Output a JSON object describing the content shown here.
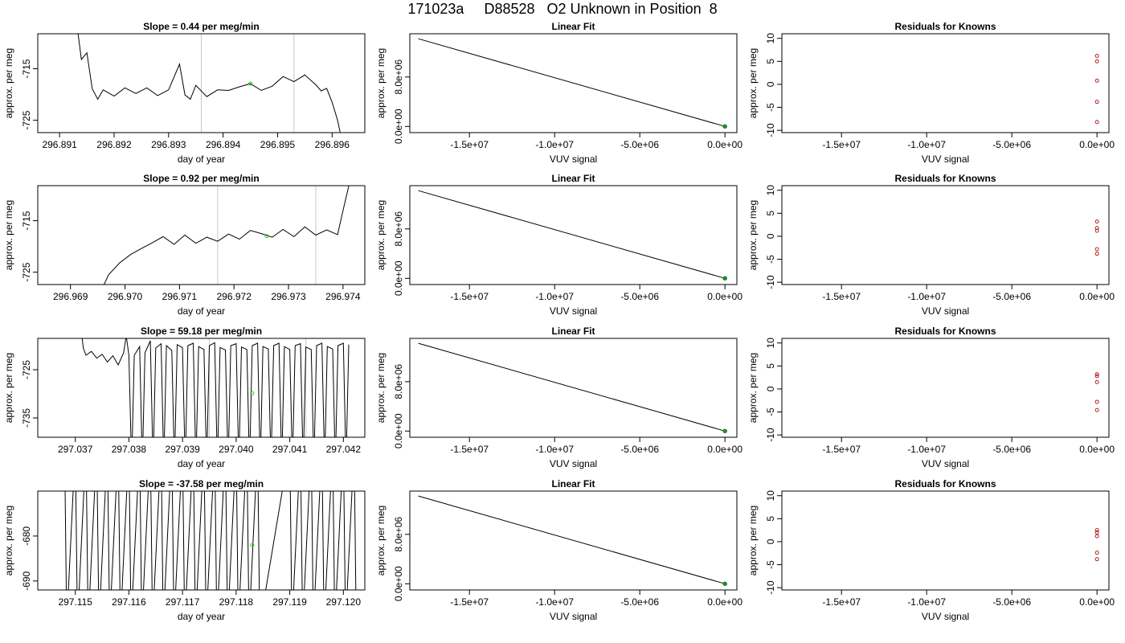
{
  "title": "171023a     D88528   O2 Unknown in Position  8",
  "chart_data": [
    {
      "type": "line",
      "title": "Slope =  0.44  per meg/min",
      "xlabel": "day of year",
      "ylabel": "approx. per meg",
      "xlim": [
        296.8906,
        296.8966
      ],
      "ylim": [
        -727.4,
        -708.2
      ],
      "x_ticks": [
        "296.891",
        "296.892",
        "296.893",
        "296.894",
        "296.895",
        "296.896"
      ],
      "x_tick_values": [
        296.891,
        296.892,
        296.893,
        296.894,
        296.895,
        296.896
      ],
      "y_ticks": [
        "-725",
        "-715"
      ],
      "y_tick_values": [
        -725,
        -715
      ],
      "vlines": [
        296.8936,
        296.8953
      ],
      "point": [
        296.8945,
        -717.9
      ],
      "series": [
        {
          "x": [
            296.8913,
            296.8914,
            296.8915,
            296.8916,
            296.8917,
            296.8918,
            296.892,
            296.8922,
            296.8924,
            296.8926,
            296.8928,
            296.893,
            296.8932,
            296.8933,
            296.8934,
            296.8935,
            296.8937,
            296.8939,
            296.8941,
            296.8943,
            296.8945,
            296.8947,
            296.8949,
            296.8951,
            296.8953,
            296.8955,
            296.8957,
            296.8958,
            296.8959,
            296.896,
            296.8961,
            296.8962
          ],
          "y": [
            -705.0,
            -713.2,
            -711.9,
            -718.9,
            -720.9,
            -719.1,
            -720.3,
            -718.7,
            -719.8,
            -718.7,
            -720.2,
            -719.1,
            -714.1,
            -720.1,
            -720.9,
            -718.2,
            -720.4,
            -719.1,
            -719.2,
            -718.5,
            -717.9,
            -719.2,
            -718.4,
            -716.5,
            -717.5,
            -716.2,
            -718.1,
            -719.3,
            -718.8,
            -721.5,
            -725.0,
            -730.0
          ]
        }
      ]
    },
    {
      "type": "line",
      "title": "Linear Fit",
      "xlabel": "VUV signal",
      "ylabel": "approx. per meg",
      "xlim": [
        -18500000.0,
        700000.0
      ],
      "ylim": [
        -1000000.0,
        15000000.0
      ],
      "x_ticks": [
        "-1.5e+07",
        "-1.0e+07",
        "-5.0e+06",
        "0.0e+00"
      ],
      "x_tick_values": [
        -15000000.0,
        -10000000.0,
        -5000000.0,
        0
      ],
      "y_ticks": [
        "0.0e+00",
        "8.0e+06"
      ],
      "y_tick_values": [
        0,
        8000000.0
      ],
      "series": [
        {
          "x": [
            -18000000.0,
            0
          ],
          "y": [
            14200000.0,
            0
          ]
        }
      ],
      "points": [
        [
          0,
          0
        ]
      ]
    },
    {
      "type": "scatter",
      "title": "Residuals for Knowns",
      "xlabel": "VUV signal",
      "ylabel": "approx. per meg",
      "xlim": [
        -18500000.0,
        700000.0
      ],
      "ylim": [
        -10.5,
        11
      ],
      "x_ticks": [
        "-1.5e+07",
        "-1.0e+07",
        "-5.0e+06",
        "0.0e+00"
      ],
      "x_tick_values": [
        -15000000.0,
        -10000000.0,
        -5000000.0,
        0
      ],
      "y_ticks": [
        "-10",
        "-5",
        "0",
        "5",
        "10"
      ],
      "y_tick_values": [
        -10,
        -5,
        0,
        5,
        10
      ],
      "series": [
        {
          "x": [
            0,
            0,
            0,
            0,
            0
          ],
          "y": [
            6.2,
            5.0,
            0.8,
            -3.8,
            -8.2
          ]
        }
      ]
    },
    {
      "type": "line",
      "title": "Slope =  0.92  per meg/min",
      "xlabel": "day of year",
      "ylabel": "approx. per meg",
      "xlim": [
        296.9684,
        296.9744
      ],
      "ylim": [
        -727.4,
        -708.2
      ],
      "x_ticks": [
        "296.969",
        "296.970",
        "296.971",
        "296.972",
        "296.973",
        "296.974"
      ],
      "x_tick_values": [
        296.969,
        296.97,
        296.971,
        296.972,
        296.973,
        296.974
      ],
      "y_ticks": [
        "-725",
        "-715"
      ],
      "y_tick_values": [
        -725,
        -715
      ],
      "vlines": [
        296.9717,
        296.9735
      ],
      "point": [
        296.9726,
        -718.0
      ],
      "series": [
        {
          "x": [
            296.9695,
            296.9697,
            296.9699,
            296.9701,
            296.9703,
            296.9705,
            296.9707,
            296.9709,
            296.9711,
            296.9713,
            296.9715,
            296.9717,
            296.9719,
            296.9721,
            296.9723,
            296.9725,
            296.9727,
            296.9729,
            296.9731,
            296.9733,
            296.9735,
            296.9737,
            296.9739,
            296.974,
            296.9741,
            296.9742
          ],
          "y": [
            -730.0,
            -725.5,
            -723.2,
            -721.6,
            -720.4,
            -719.3,
            -718.1,
            -719.6,
            -717.8,
            -719.4,
            -718.2,
            -719.0,
            -717.6,
            -718.6,
            -716.9,
            -717.5,
            -718.2,
            -716.7,
            -718.1,
            -716.2,
            -717.8,
            -716.8,
            -717.7,
            -713.0,
            -708.5,
            -704.0
          ]
        }
      ]
    },
    {
      "type": "line",
      "title": "Linear Fit",
      "xlabel": "VUV signal",
      "ylabel": "approx. per meg",
      "xlim": [
        -18500000.0,
        700000.0
      ],
      "ylim": [
        -1000000.0,
        15000000.0
      ],
      "x_ticks": [
        "-1.5e+07",
        "-1.0e+07",
        "-5.0e+06",
        "0.0e+00"
      ],
      "x_tick_values": [
        -15000000.0,
        -10000000.0,
        -5000000.0,
        0
      ],
      "y_ticks": [
        "0.0e+00",
        "8.0e+06"
      ],
      "y_tick_values": [
        0,
        8000000.0
      ],
      "series": [
        {
          "x": [
            -18000000.0,
            0
          ],
          "y": [
            14200000.0,
            0
          ]
        }
      ],
      "points": [
        [
          0,
          0
        ]
      ]
    },
    {
      "type": "scatter",
      "title": "Residuals for Knowns",
      "xlabel": "VUV signal",
      "ylabel": "approx. per meg",
      "xlim": [
        -18500000.0,
        700000.0
      ],
      "ylim": [
        -10.5,
        11
      ],
      "x_ticks": [
        "-1.5e+07",
        "-1.0e+07",
        "-5.0e+06",
        "0.0e+00"
      ],
      "x_tick_values": [
        -15000000.0,
        -10000000.0,
        -5000000.0,
        0
      ],
      "y_ticks": [
        "-10",
        "-5",
        "0",
        "5",
        "10"
      ],
      "y_tick_values": [
        -10,
        -5,
        0,
        5,
        10
      ],
      "series": [
        {
          "x": [
            0,
            0,
            0,
            0,
            0
          ],
          "y": [
            3.2,
            1.8,
            1.2,
            -2.8,
            -3.8
          ]
        }
      ]
    },
    {
      "type": "line",
      "title": "Slope =  59.18  per meg/min",
      "xlabel": "day of year",
      "ylabel": "approx. per meg",
      "xlim": [
        297.0363,
        297.0424
      ],
      "ylim": [
        -739,
        -718.5
      ],
      "x_ticks": [
        "297.037",
        "297.038",
        "297.039",
        "297.040",
        "297.041",
        "297.042"
      ],
      "x_tick_values": [
        297.037,
        297.038,
        297.039,
        297.04,
        297.041,
        297.042
      ],
      "y_ticks": [
        "-735",
        "-725"
      ],
      "y_tick_values": [
        -735,
        -725
      ],
      "vlines": [
        297.0395,
        297.0413
      ],
      "point": [
        297.0403,
        -729.9
      ],
      "series": [
        {
          "x": [
            297.0371,
            297.03715,
            297.0372,
            297.0373,
            297.0374,
            297.0375,
            297.0376,
            297.0377,
            297.0378,
            297.0379,
            297.03795,
            297.038,
            297.03805,
            297.0381,
            297.0382,
            297.03825,
            297.0383,
            297.0384,
            297.03845,
            297.0385,
            297.0386,
            297.03865,
            297.0387,
            297.0388,
            297.03885,
            297.0389,
            297.039,
            297.03905,
            297.0391,
            297.0392,
            297.03925,
            297.0393,
            297.0394,
            297.03945,
            297.0395,
            297.0396,
            297.03965,
            297.0397,
            297.0398,
            297.03985,
            297.0399,
            297.04,
            297.04005,
            297.0401,
            297.0402,
            297.04025,
            297.0403,
            297.0404,
            297.04045,
            297.0405,
            297.0406,
            297.04065,
            297.0407,
            297.0408,
            297.04085,
            297.0409,
            297.041,
            297.04105,
            297.0411,
            297.0412,
            297.04125,
            297.0413,
            297.0414,
            297.04145,
            297.0415,
            297.0416,
            297.04165,
            297.0417,
            297.0418,
            297.04185,
            297.0419,
            297.042,
            297.04205,
            297.0421
          ],
          "y": [
            -716.0,
            -720.5,
            -722.0,
            -721.2,
            -722.6,
            -721.8,
            -723.4,
            -722.1,
            -724.0,
            -721.5,
            -718.0,
            -722.0,
            -745.0,
            -722.0,
            -720.2,
            -745.0,
            -721.5,
            -719.0,
            -745.0,
            -720.5,
            -719.6,
            -745.0,
            -720.0,
            -721.0,
            -745.0,
            -719.8,
            -720.4,
            -745.0,
            -720.0,
            -719.5,
            -745.0,
            -720.2,
            -720.8,
            -745.0,
            -720.0,
            -719.4,
            -745.0,
            -720.4,
            -720.9,
            -745.0,
            -720.0,
            -719.6,
            -745.0,
            -720.3,
            -720.8,
            -745.0,
            -720.0,
            -719.5,
            -745.0,
            -720.2,
            -720.7,
            -745.0,
            -720.0,
            -719.5,
            -745.0,
            -720.2,
            -720.8,
            -745.0,
            -720.0,
            -719.6,
            -745.0,
            -720.3,
            -720.8,
            -745.0,
            -720.0,
            -719.5,
            -745.0,
            -720.2,
            -720.7,
            -745.0,
            -720.0,
            -719.5,
            -745.0,
            -719.8
          ]
        }
      ]
    },
    {
      "type": "line",
      "title": "Linear Fit",
      "xlabel": "VUV signal",
      "ylabel": "approx. per meg",
      "xlim": [
        -18500000.0,
        700000.0
      ],
      "ylim": [
        -1000000.0,
        15000000.0
      ],
      "x_ticks": [
        "-1.5e+07",
        "-1.0e+07",
        "-5.0e+06",
        "0.0e+00"
      ],
      "x_tick_values": [
        -15000000.0,
        -10000000.0,
        -5000000.0,
        0
      ],
      "y_ticks": [
        "0.0e+00",
        "8.0e+06"
      ],
      "y_tick_values": [
        0,
        8000000.0
      ],
      "series": [
        {
          "x": [
            -18000000.0,
            0
          ],
          "y": [
            14200000.0,
            0
          ]
        }
      ],
      "points": [
        [
          0,
          0
        ]
      ]
    },
    {
      "type": "scatter",
      "title": "Residuals for Knowns",
      "xlabel": "VUV signal",
      "ylabel": "approx. per meg",
      "xlim": [
        -18500000.0,
        700000.0
      ],
      "ylim": [
        -10.5,
        11
      ],
      "x_ticks": [
        "-1.5e+07",
        "-1.0e+07",
        "-5.0e+06",
        "0.0e+00"
      ],
      "x_tick_values": [
        -15000000.0,
        -10000000.0,
        -5000000.0,
        0
      ],
      "y_ticks": [
        "-10",
        "-5",
        "0",
        "5",
        "10"
      ],
      "y_tick_values": [
        -10,
        -5,
        0,
        5,
        10
      ],
      "series": [
        {
          "x": [
            0,
            0,
            0,
            0,
            0
          ],
          "y": [
            3.2,
            2.8,
            1.5,
            -2.8,
            -4.6
          ]
        }
      ]
    },
    {
      "type": "line",
      "title": "Slope =  -37.58  per meg/min",
      "xlabel": "day of year",
      "ylabel": "approx. per meg",
      "xlim": [
        297.1143,
        297.1204
      ],
      "ylim": [
        -692,
        -670
      ],
      "x_ticks": [
        "297.115",
        "297.116",
        "297.117",
        "297.118",
        "297.119",
        "297.120"
      ],
      "x_tick_values": [
        297.115,
        297.116,
        297.117,
        297.118,
        297.119,
        297.12
      ],
      "y_ticks": [
        "-690",
        "-680"
      ],
      "y_tick_values": [
        -690,
        -680
      ],
      "vlines": [],
      "point": [
        297.1183,
        -682.0
      ],
      "series": [
        {
          "x": [
            297.1148,
            297.11484,
            297.115,
            297.11504,
            297.1152,
            297.11524,
            297.1154,
            297.11544,
            297.1156,
            297.11564,
            297.1158,
            297.11584,
            297.116,
            297.11604,
            297.1162,
            297.11624,
            297.1164,
            297.11644,
            297.1166,
            297.11664,
            297.1168,
            297.11684,
            297.117,
            297.11704,
            297.1172,
            297.11724,
            297.1174,
            297.11744,
            297.1176,
            297.11764,
            297.1178,
            297.11784,
            297.118,
            297.11804,
            297.1182,
            297.11824,
            297.1184,
            297.11844,
            297.119,
            297.11904,
            297.1192,
            297.11924,
            297.1194,
            297.11944,
            297.1196,
            297.11964,
            297.1198,
            297.11984,
            297.12,
            297.12004,
            297.1202,
            297.12024
          ],
          "y": [
            -660,
            -700,
            -660,
            -700,
            -660,
            -700,
            -660,
            -700,
            -660,
            -700,
            -660,
            -700,
            -660,
            -700,
            -660,
            -700,
            -660,
            -700,
            -660,
            -700,
            -660,
            -700,
            -660,
            -700,
            -660,
            -700,
            -660,
            -700,
            -660,
            -700,
            -660,
            -700,
            -660,
            -700,
            -660,
            -700,
            -660,
            -700,
            -660,
            -700,
            -660,
            -700,
            -660,
            -700,
            -660,
            -700,
            -660,
            -700,
            -660,
            -700,
            -660,
            -700
          ]
        }
      ]
    },
    {
      "type": "line",
      "title": "Linear Fit",
      "xlabel": "VUV signal",
      "ylabel": "approx. per meg",
      "xlim": [
        -18500000.0,
        700000.0
      ],
      "ylim": [
        -1000000.0,
        15000000.0
      ],
      "x_ticks": [
        "-1.5e+07",
        "-1.0e+07",
        "-5.0e+06",
        "0.0e+00"
      ],
      "x_tick_values": [
        -15000000.0,
        -10000000.0,
        -5000000.0,
        0
      ],
      "y_ticks": [
        "0.0e+00",
        "8.0e+06"
      ],
      "y_tick_values": [
        0,
        8000000.0
      ],
      "series": [
        {
          "x": [
            -18000000.0,
            0
          ],
          "y": [
            14200000.0,
            0
          ]
        }
      ],
      "points": [
        [
          0,
          0
        ]
      ]
    },
    {
      "type": "scatter",
      "title": "Residuals for Knowns",
      "xlabel": "VUV signal",
      "ylabel": "approx. per meg",
      "xlim": [
        -18500000.0,
        700000.0
      ],
      "ylim": [
        -10.5,
        11
      ],
      "x_ticks": [
        "-1.5e+07",
        "-1.0e+07",
        "-5.0e+06",
        "0.0e+00"
      ],
      "x_tick_values": [
        -15000000.0,
        -10000000.0,
        -5000000.0,
        0
      ],
      "y_ticks": [
        "-10",
        "-5",
        "0",
        "5",
        "10"
      ],
      "y_tick_values": [
        -10,
        -5,
        0,
        5,
        10
      ],
      "series": [
        {
          "x": [
            0,
            0,
            0,
            0,
            0
          ],
          "y": [
            2.5,
            2.0,
            1.2,
            -2.4,
            -3.8
          ]
        }
      ]
    }
  ],
  "colors": {
    "line": "#000000",
    "vline": "#c8c8c8",
    "unknown_point": "#22cc22",
    "fit_point": "#228b22",
    "residual_point": "#b22222"
  }
}
